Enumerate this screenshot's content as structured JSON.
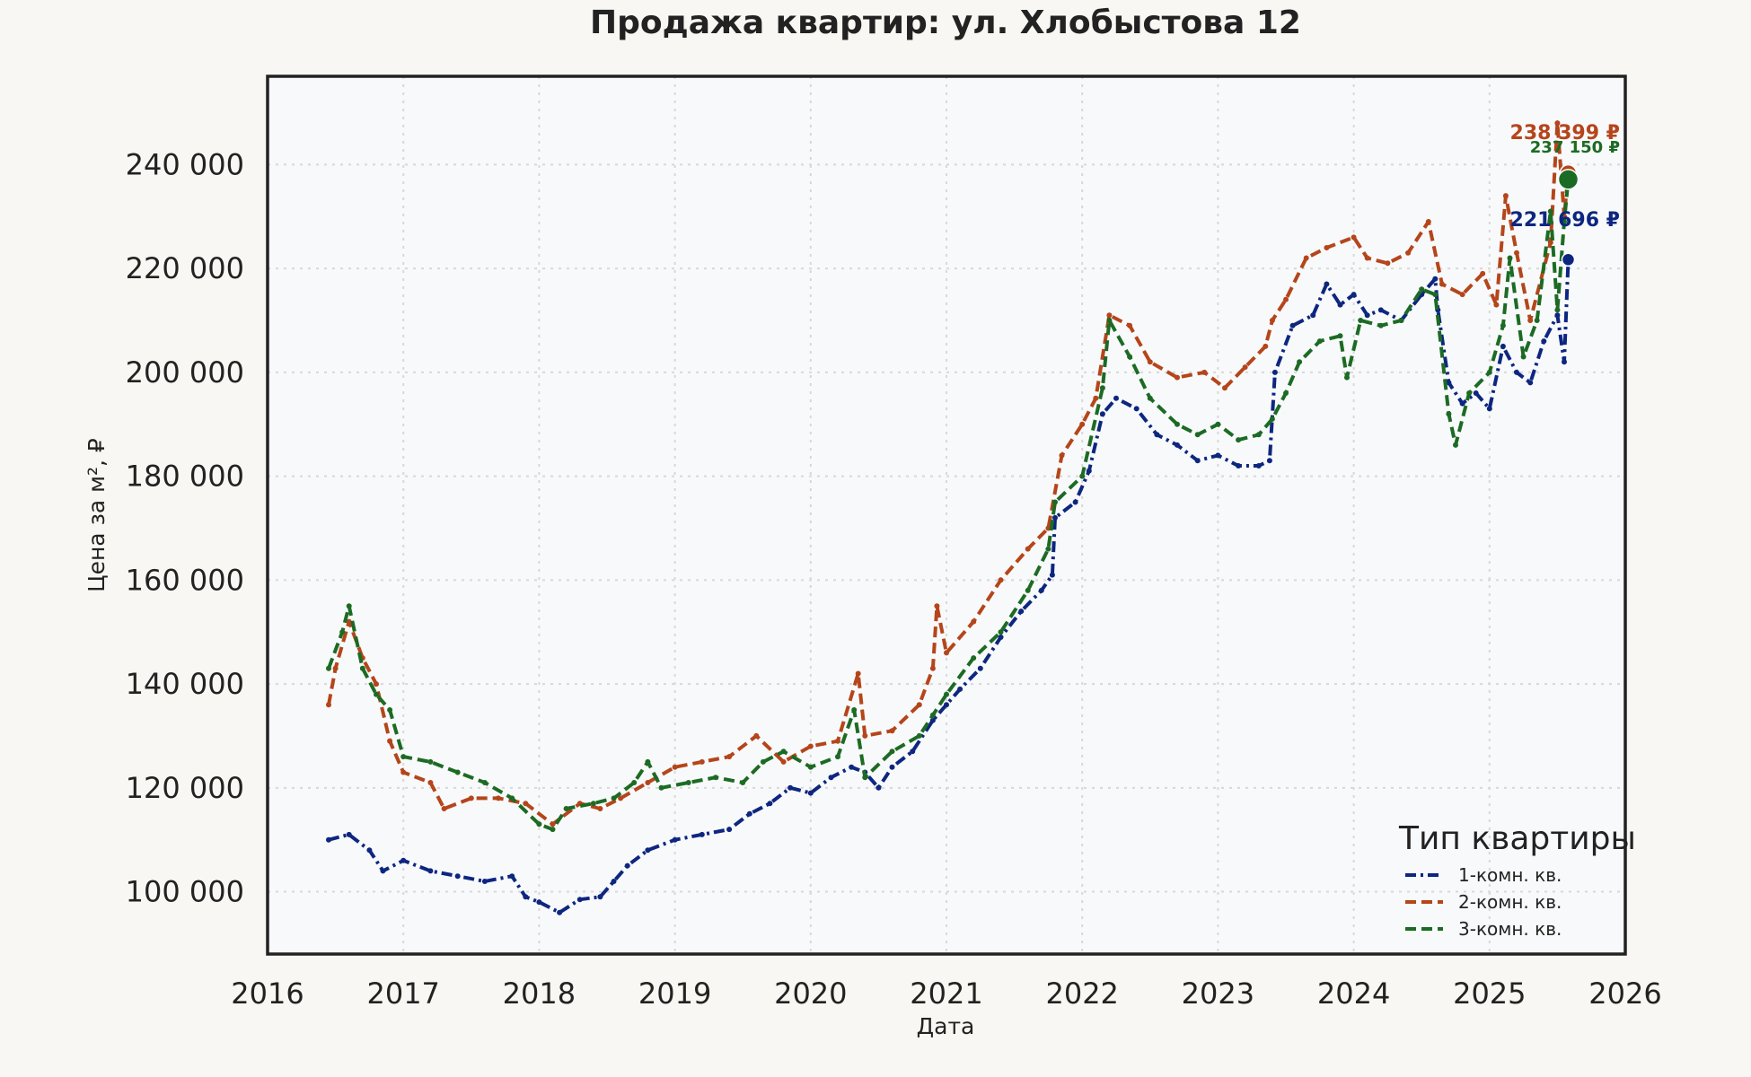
{
  "chart_data": {
    "type": "line",
    "title": "Продажа квартир: ул. Хлобыстова 12",
    "xlabel": "Дата",
    "ylabel": "Цена за м², ₽",
    "xlim": [
      2016,
      2026
    ],
    "ylim": [
      88000,
      257000
    ],
    "x_ticks": [
      {
        "value": 2016,
        "label": "2016"
      },
      {
        "value": 2017,
        "label": "2017"
      },
      {
        "value": 2018,
        "label": "2018"
      },
      {
        "value": 2019,
        "label": "2019"
      },
      {
        "value": 2020,
        "label": "2020"
      },
      {
        "value": 2021,
        "label": "2021"
      },
      {
        "value": 2022,
        "label": "2022"
      },
      {
        "value": 2023,
        "label": "2023"
      },
      {
        "value": 2024,
        "label": "2024"
      },
      {
        "value": 2025,
        "label": "2025"
      },
      {
        "value": 2026,
        "label": "2026"
      }
    ],
    "y_ticks": [
      {
        "value": 100000,
        "label": "100 000"
      },
      {
        "value": 120000,
        "label": "120 000"
      },
      {
        "value": 140000,
        "label": "140 000"
      },
      {
        "value": 160000,
        "label": "160 000"
      },
      {
        "value": 180000,
        "label": "180 000"
      },
      {
        "value": 200000,
        "label": "200 000"
      },
      {
        "value": 220000,
        "label": "220 000"
      },
      {
        "value": 240000,
        "label": "240 000"
      }
    ],
    "grid": true,
    "legend": {
      "title": "Тип квартиры",
      "position": "bottom-right"
    },
    "series": [
      {
        "name": "1-комн. кв.",
        "color": "#0d2680",
        "style": "dashdot",
        "end_label": "221 696 ₽",
        "points": [
          [
            2016.45,
            110000
          ],
          [
            2016.6,
            111000
          ],
          [
            2016.75,
            108000
          ],
          [
            2016.85,
            104000
          ],
          [
            2017.0,
            106000
          ],
          [
            2017.2,
            104000
          ],
          [
            2017.4,
            103000
          ],
          [
            2017.6,
            102000
          ],
          [
            2017.8,
            103000
          ],
          [
            2017.9,
            99000
          ],
          [
            2018.0,
            98000
          ],
          [
            2018.15,
            96000
          ],
          [
            2018.3,
            98500
          ],
          [
            2018.45,
            99000
          ],
          [
            2018.55,
            102000
          ],
          [
            2018.65,
            105000
          ],
          [
            2018.8,
            108000
          ],
          [
            2019.0,
            110000
          ],
          [
            2019.2,
            111000
          ],
          [
            2019.4,
            112000
          ],
          [
            2019.55,
            115000
          ],
          [
            2019.7,
            117000
          ],
          [
            2019.85,
            120000
          ],
          [
            2020.0,
            119000
          ],
          [
            2020.15,
            122000
          ],
          [
            2020.3,
            124000
          ],
          [
            2020.4,
            123000
          ],
          [
            2020.5,
            120000
          ],
          [
            2020.6,
            124000
          ],
          [
            2020.75,
            127000
          ],
          [
            2020.9,
            133000
          ],
          [
            2021.0,
            136000
          ],
          [
            2021.1,
            139000
          ],
          [
            2021.25,
            143000
          ],
          [
            2021.4,
            149000
          ],
          [
            2021.55,
            154000
          ],
          [
            2021.7,
            158000
          ],
          [
            2021.78,
            161000
          ],
          [
            2021.8,
            172000
          ],
          [
            2021.95,
            175000
          ],
          [
            2022.05,
            181000
          ],
          [
            2022.15,
            192000
          ],
          [
            2022.25,
            195000
          ],
          [
            2022.4,
            193000
          ],
          [
            2022.55,
            188000
          ],
          [
            2022.7,
            186000
          ],
          [
            2022.85,
            183000
          ],
          [
            2023.0,
            184000
          ],
          [
            2023.15,
            182000
          ],
          [
            2023.3,
            182000
          ],
          [
            2023.38,
            183000
          ],
          [
            2023.42,
            200000
          ],
          [
            2023.55,
            209000
          ],
          [
            2023.7,
            211000
          ],
          [
            2023.8,
            217000
          ],
          [
            2023.9,
            213000
          ],
          [
            2024.0,
            215000
          ],
          [
            2024.1,
            211000
          ],
          [
            2024.2,
            212000
          ],
          [
            2024.35,
            210000
          ],
          [
            2024.5,
            215000
          ],
          [
            2024.6,
            218000
          ],
          [
            2024.62,
            212000
          ],
          [
            2024.7,
            198000
          ],
          [
            2024.8,
            194000
          ],
          [
            2024.9,
            196000
          ],
          [
            2025.0,
            193000
          ],
          [
            2025.1,
            205000
          ],
          [
            2025.2,
            200000
          ],
          [
            2025.3,
            198000
          ],
          [
            2025.4,
            206000
          ],
          [
            2025.5,
            211000
          ],
          [
            2025.55,
            202000
          ],
          [
            2025.58,
            221696
          ]
        ]
      },
      {
        "name": "2-комн. кв.",
        "color": "#b5451b",
        "style": "dashed",
        "end_label": "238 399 ₽",
        "points": [
          [
            2016.45,
            136000
          ],
          [
            2016.5,
            143000
          ],
          [
            2016.6,
            152000
          ],
          [
            2016.7,
            145000
          ],
          [
            2016.8,
            140000
          ],
          [
            2016.9,
            129000
          ],
          [
            2017.0,
            123000
          ],
          [
            2017.2,
            121000
          ],
          [
            2017.3,
            116000
          ],
          [
            2017.5,
            118000
          ],
          [
            2017.7,
            118000
          ],
          [
            2017.9,
            117000
          ],
          [
            2018.1,
            113000
          ],
          [
            2018.3,
            117000
          ],
          [
            2018.45,
            116000
          ],
          [
            2018.6,
            118000
          ],
          [
            2018.8,
            121000
          ],
          [
            2019.0,
            124000
          ],
          [
            2019.2,
            125000
          ],
          [
            2019.4,
            126000
          ],
          [
            2019.6,
            130000
          ],
          [
            2019.8,
            125000
          ],
          [
            2020.0,
            128000
          ],
          [
            2020.2,
            129000
          ],
          [
            2020.35,
            142000
          ],
          [
            2020.4,
            130000
          ],
          [
            2020.6,
            131000
          ],
          [
            2020.8,
            136000
          ],
          [
            2020.9,
            143000
          ],
          [
            2020.93,
            155000
          ],
          [
            2021.0,
            146000
          ],
          [
            2021.2,
            152000
          ],
          [
            2021.4,
            160000
          ],
          [
            2021.6,
            166000
          ],
          [
            2021.75,
            170000
          ],
          [
            2021.85,
            184000
          ],
          [
            2022.0,
            190000
          ],
          [
            2022.1,
            195000
          ],
          [
            2022.2,
            211000
          ],
          [
            2022.35,
            209000
          ],
          [
            2022.5,
            202000
          ],
          [
            2022.7,
            199000
          ],
          [
            2022.9,
            200000
          ],
          [
            2023.05,
            197000
          ],
          [
            2023.2,
            201000
          ],
          [
            2023.35,
            205000
          ],
          [
            2023.4,
            210000
          ],
          [
            2023.5,
            214000
          ],
          [
            2023.65,
            222000
          ],
          [
            2023.8,
            224000
          ],
          [
            2024.0,
            226000
          ],
          [
            2024.1,
            222000
          ],
          [
            2024.25,
            221000
          ],
          [
            2024.4,
            223000
          ],
          [
            2024.55,
            229000
          ],
          [
            2024.65,
            217000
          ],
          [
            2024.8,
            215000
          ],
          [
            2024.95,
            219000
          ],
          [
            2025.05,
            213000
          ],
          [
            2025.12,
            234000
          ],
          [
            2025.2,
            223000
          ],
          [
            2025.3,
            210000
          ],
          [
            2025.45,
            225000
          ],
          [
            2025.5,
            248000
          ],
          [
            2025.55,
            230000
          ],
          [
            2025.58,
            238399
          ]
        ]
      },
      {
        "name": "3-комн. кв.",
        "color": "#1c6b24",
        "style": "dashed",
        "end_label": "237 150 ₽",
        "points": [
          [
            2016.45,
            143000
          ],
          [
            2016.55,
            150000
          ],
          [
            2016.6,
            155000
          ],
          [
            2016.7,
            143000
          ],
          [
            2016.8,
            138000
          ],
          [
            2016.9,
            135000
          ],
          [
            2017.0,
            126000
          ],
          [
            2017.2,
            125000
          ],
          [
            2017.4,
            123000
          ],
          [
            2017.6,
            121000
          ],
          [
            2017.8,
            118000
          ],
          [
            2018.0,
            113000
          ],
          [
            2018.1,
            112000
          ],
          [
            2018.2,
            116000
          ],
          [
            2018.4,
            117000
          ],
          [
            2018.55,
            118000
          ],
          [
            2018.7,
            121000
          ],
          [
            2018.8,
            125000
          ],
          [
            2018.9,
            120000
          ],
          [
            2019.1,
            121000
          ],
          [
            2019.3,
            122000
          ],
          [
            2019.5,
            121000
          ],
          [
            2019.65,
            125000
          ],
          [
            2019.8,
            127000
          ],
          [
            2020.0,
            124000
          ],
          [
            2020.2,
            126000
          ],
          [
            2020.32,
            135000
          ],
          [
            2020.4,
            122000
          ],
          [
            2020.6,
            127000
          ],
          [
            2020.8,
            130000
          ],
          [
            2020.9,
            134000
          ],
          [
            2021.0,
            138000
          ],
          [
            2021.2,
            145000
          ],
          [
            2021.4,
            150000
          ],
          [
            2021.6,
            158000
          ],
          [
            2021.75,
            166000
          ],
          [
            2021.8,
            175000
          ],
          [
            2022.0,
            180000
          ],
          [
            2022.15,
            197000
          ],
          [
            2022.2,
            210000
          ],
          [
            2022.35,
            203000
          ],
          [
            2022.5,
            195000
          ],
          [
            2022.7,
            190000
          ],
          [
            2022.85,
            188000
          ],
          [
            2023.0,
            190000
          ],
          [
            2023.15,
            187000
          ],
          [
            2023.3,
            188000
          ],
          [
            2023.4,
            191000
          ],
          [
            2023.5,
            196000
          ],
          [
            2023.6,
            202000
          ],
          [
            2023.75,
            206000
          ],
          [
            2023.9,
            207000
          ],
          [
            2023.95,
            199000
          ],
          [
            2024.05,
            210000
          ],
          [
            2024.2,
            209000
          ],
          [
            2024.35,
            210000
          ],
          [
            2024.5,
            216000
          ],
          [
            2024.6,
            215000
          ],
          [
            2024.7,
            192000
          ],
          [
            2024.75,
            186000
          ],
          [
            2024.85,
            196000
          ],
          [
            2025.0,
            200000
          ],
          [
            2025.1,
            209000
          ],
          [
            2025.15,
            222000
          ],
          [
            2025.25,
            203000
          ],
          [
            2025.35,
            210000
          ],
          [
            2025.45,
            231000
          ],
          [
            2025.5,
            212000
          ],
          [
            2025.55,
            229000
          ],
          [
            2025.58,
            237150
          ]
        ]
      }
    ]
  }
}
